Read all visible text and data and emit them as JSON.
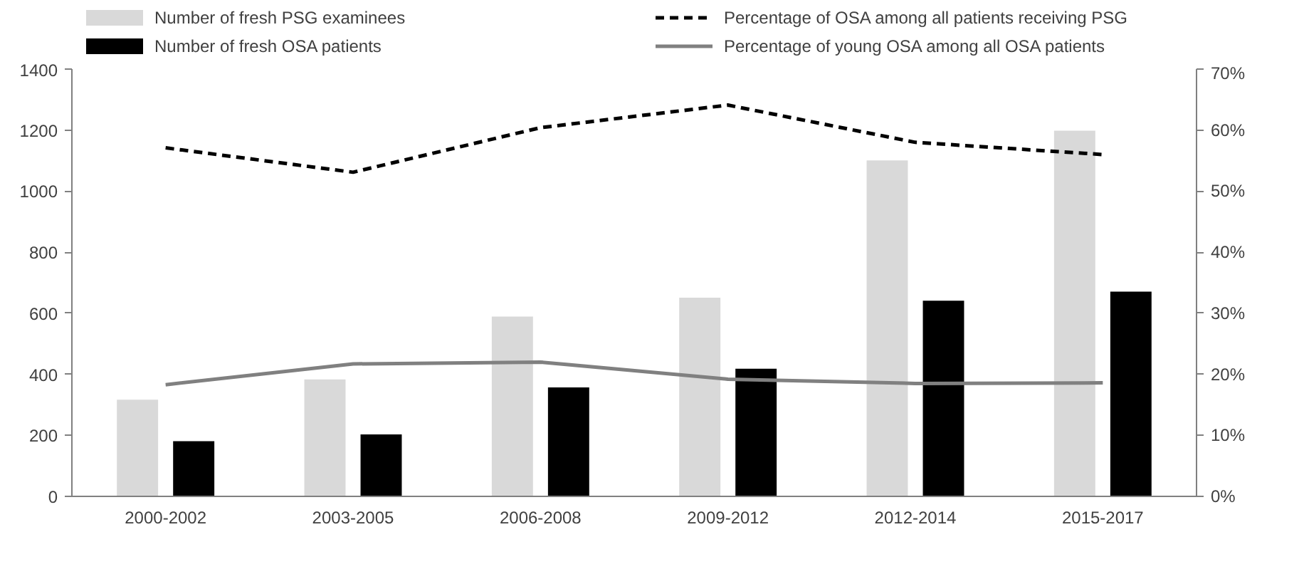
{
  "chart_data": {
    "type": "bar",
    "categories": [
      "2000-2002",
      "2003-2005",
      "2006-2008",
      "2009-2012",
      "2012-2014",
      "2015-2017"
    ],
    "series": [
      {
        "name": "Number of fresh PSG examinees",
        "color": "#d9d9d9",
        "values": [
          317,
          383,
          589,
          651,
          1101,
          1198
        ]
      },
      {
        "name": "Number of fresh OSA patients",
        "color": "#000000",
        "values": [
          181,
          203,
          357,
          418,
          641,
          671
        ]
      },
      {
        "name": "Percentage of OSA among all patients receiving PSG",
        "type": "line",
        "axis": "y2",
        "line_style": "dashed",
        "color": "#000000",
        "values": [
          57.1,
          53.1,
          60.4,
          64.1,
          58.0,
          56.0
        ]
      },
      {
        "name": "Percentage of young OSA among all OSA patients",
        "type": "line",
        "axis": "y2",
        "line_style": "solid",
        "color": "#808080",
        "values": [
          18.3,
          21.7,
          22.0,
          19.2,
          18.5,
          18.6
        ]
      }
    ],
    "ylim": [
      0,
      1400
    ],
    "yticks": [
      0,
      200,
      400,
      600,
      800,
      1000,
      1200,
      1400
    ],
    "y2lim": [
      0,
      70
    ],
    "y2ticks": [
      {
        "value": 0,
        "label": "0%"
      },
      {
        "value": 10,
        "label": "10%"
      },
      {
        "value": 20,
        "label": "20%"
      },
      {
        "value": 30,
        "label": "30%"
      },
      {
        "value": 40,
        "label": "40%"
      },
      {
        "value": 50,
        "label": "50%"
      },
      {
        "value": 60,
        "label": "60%"
      },
      {
        "value": 70,
        "label": "70%"
      }
    ],
    "legend": "top",
    "grid": false
  }
}
